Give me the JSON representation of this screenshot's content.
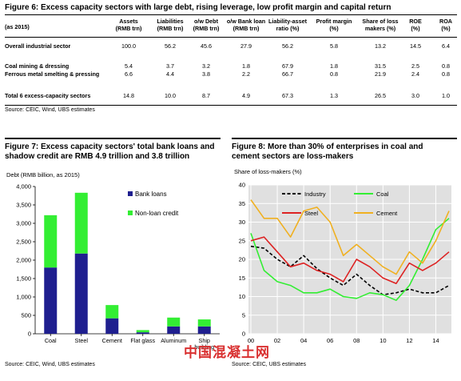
{
  "figure6": {
    "title": "Figure 6: Excess capacity sectors with large debt, rising leverage, low profit margin and capital return",
    "year_label": "(as 2015)",
    "columns": [
      {
        "line1": "Assets",
        "line2": "(RMB trn)"
      },
      {
        "line1": "Liabilities",
        "line2": "(RMB trn)"
      },
      {
        "line1": "o/w Debt",
        "line2": "(RMB trn)"
      },
      {
        "line1": "o/w Bank loan",
        "line2": "(RMB trn)"
      },
      {
        "line1": "Liability-asset",
        "line2": "ratio (%)"
      },
      {
        "line1": "Profit margin",
        "line2": "(%)"
      },
      {
        "line1": "Share of loss",
        "line2": "makers (%)"
      },
      {
        "line1": "ROE",
        "line2": "(%)"
      },
      {
        "line1": "ROA",
        "line2": "(%)"
      }
    ],
    "rows": [
      {
        "label": "Overall industrial sector",
        "values": [
          "100.0",
          "56.2",
          "45.6",
          "27.9",
          "56.2",
          "5.8",
          "13.2",
          "14.5",
          "6.4"
        ]
      },
      {
        "label": "Coal mining & dressing",
        "values": [
          "5.4",
          "3.7",
          "3.2",
          "1.8",
          "67.9",
          "1.8",
          "31.5",
          "2.5",
          "0.8"
        ]
      },
      {
        "label": "Ferrous metal smelting & pressing",
        "values": [
          "6.6",
          "4.4",
          "3.8",
          "2.2",
          "66.7",
          "0.8",
          "21.9",
          "2.4",
          "0.8"
        ]
      },
      {
        "label": "Total 6 excess-capacity sectors",
        "values": [
          "14.8",
          "10.0",
          "8.7",
          "4.9",
          "67.3",
          "1.3",
          "26.5",
          "3.0",
          "1.0"
        ]
      }
    ],
    "source": "Source:  CEIC, Wind, UBS estimates"
  },
  "figure7": {
    "title_line1": "Figure 7: Excess capacity sectors' total bank loans and",
    "title_line2": "shadow credit are RMB 4.9 trillion and 3.8 trillion",
    "source": "Source:  CEIC, Wind, UBS estimates"
  },
  "figure8": {
    "title_line1": "Figure 8: More than 30% of enterprises in coal and",
    "title_line2": "cement sectors are loss-makers",
    "source": "Source:  CEIC, UBS estimates"
  },
  "watermark": "中国混凝土网",
  "colors": {
    "bank_loans": "#1f1f8f",
    "non_loan": "#33ee33",
    "industry": "#000000",
    "coal": "#33ee33",
    "steel": "#dd2222",
    "cement": "#f0b020",
    "plot_bg": "#e0e0e0"
  },
  "chart_data": [
    {
      "type": "bar",
      "stacked": true,
      "ylabel": "Debt (RMB billion, as 2015)",
      "ylim": [
        0,
        4000
      ],
      "yticks": [
        "0",
        "500",
        "1,000",
        "1,500",
        "2,000",
        "2,500",
        "3,000",
        "3,500",
        "4,000"
      ],
      "categories": [
        "Coal",
        "Steel",
        "Cement",
        "Flat glass",
        "Aluminum",
        "Ship building"
      ],
      "series": [
        {
          "name": "Bank loans",
          "values": [
            1800,
            2180,
            420,
            40,
            200,
            200
          ]
        },
        {
          "name": "Non-loan credit",
          "values": [
            1420,
            1650,
            360,
            60,
            240,
            190
          ]
        }
      ],
      "legend_position": "top-right",
      "grid": false
    },
    {
      "type": "line",
      "ylabel": "Share of loss-makers (%)",
      "ylim": [
        0,
        40
      ],
      "yticks": [
        "0",
        "5",
        "10",
        "15",
        "20",
        "25",
        "30",
        "35",
        "40"
      ],
      "xlim": [
        2000,
        2015
      ],
      "xticks": [
        "00",
        "02",
        "04",
        "06",
        "08",
        "10",
        "12",
        "14"
      ],
      "x": [
        2000,
        2001,
        2002,
        2003,
        2004,
        2005,
        2006,
        2007,
        2008,
        2009,
        2010,
        2011,
        2012,
        2013,
        2014,
        2015
      ],
      "series": [
        {
          "name": "Industry",
          "values": [
            23.5,
            23,
            20,
            18,
            21,
            17.5,
            15,
            13,
            16,
            13,
            10.5,
            11,
            12,
            11,
            11,
            13
          ]
        },
        {
          "name": "Coal",
          "values": [
            27,
            17,
            14,
            13,
            11,
            11,
            12,
            10,
            9.5,
            11,
            10.5,
            9,
            13,
            20,
            28,
            31
          ]
        },
        {
          "name": "Steel",
          "values": [
            25,
            26,
            22,
            18,
            19,
            17,
            16,
            14,
            20,
            18,
            15,
            13.5,
            19,
            17,
            19,
            22
          ]
        },
        {
          "name": "Cement",
          "values": [
            36,
            31,
            31,
            26,
            33,
            34,
            30,
            21,
            24,
            21,
            18,
            16,
            22,
            19,
            25,
            33
          ]
        }
      ],
      "legend_position": "top",
      "grid": true
    }
  ]
}
